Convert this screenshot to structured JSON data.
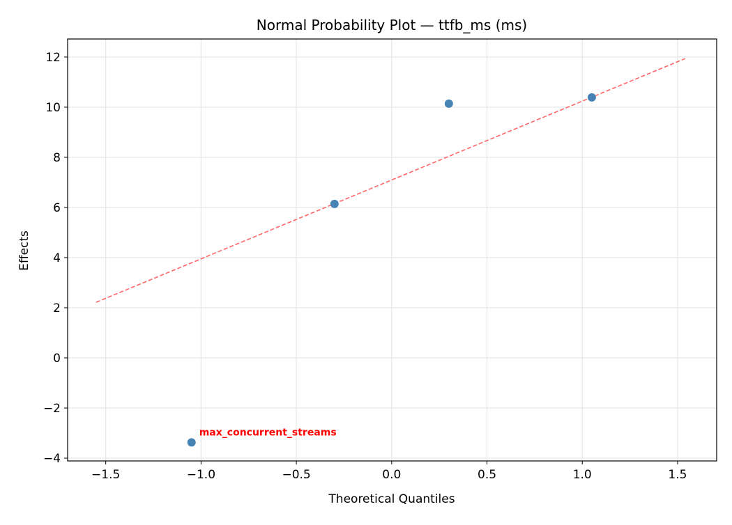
{
  "chart_data": {
    "type": "scatter",
    "title": "Normal Probability Plot — ttfb_ms (ms)",
    "xlabel": "Theoretical Quantiles",
    "ylabel": "Effects",
    "xlim": [
      -1.7,
      1.705
    ],
    "ylim": [
      -4.11,
      12.72
    ],
    "grid": true,
    "xticks": [
      -1.5,
      -1.0,
      -0.5,
      0.0,
      0.5,
      1.0,
      1.5
    ],
    "xtick_labels": [
      "−1.5",
      "−1.0",
      "−0.5",
      "0.0",
      "0.5",
      "1.0",
      "1.5"
    ],
    "yticks": [
      -4,
      -2,
      0,
      2,
      4,
      6,
      8,
      10,
      12
    ],
    "ytick_labels": [
      "−4",
      "−2",
      "0",
      "2",
      "4",
      "6",
      "8",
      "10",
      "12"
    ],
    "points": [
      {
        "x": -1.05,
        "y": -3.37
      },
      {
        "x": -0.3,
        "y": 6.14
      },
      {
        "x": 0.3,
        "y": 10.14
      },
      {
        "x": 1.05,
        "y": 10.39
      }
    ],
    "reference_line": {
      "x": [
        -1.55,
        1.54
      ],
      "y": [
        2.22,
        11.94
      ],
      "style": "dashed"
    },
    "annotations": [
      {
        "text": "max_concurrent_streams",
        "x": -1.05,
        "y": -3.37,
        "color": "#ff0000"
      }
    ],
    "colors": {
      "points": "#4682b4",
      "line": "#ff6666",
      "grid": "#e5e5e5",
      "annotation": "#ff0000"
    }
  }
}
